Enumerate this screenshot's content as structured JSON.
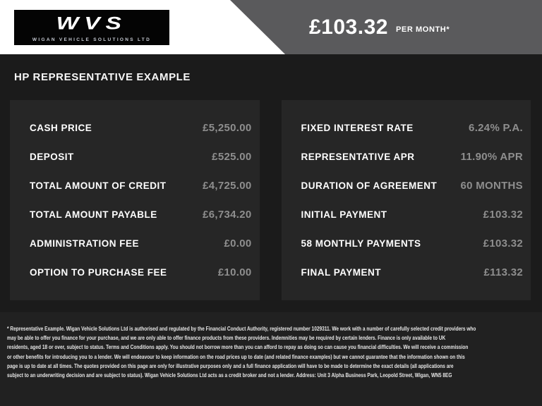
{
  "header": {
    "logo": {
      "acronym": "WVS",
      "subtitle": "WIGAN VEHICLE SOLUTIONS LTD"
    },
    "price_flag": {
      "amount": "£103.32",
      "per_label": "PER MONTH*"
    }
  },
  "section": {
    "title": "HP REPRESENTATIVE EXAMPLE"
  },
  "panels": {
    "left": {
      "rows": [
        {
          "label": "CASH PRICE",
          "value": "£5,250.00"
        },
        {
          "label": "DEPOSIT",
          "value": "£525.00"
        },
        {
          "label": "TOTAL AMOUNT OF CREDIT",
          "value": "£4,725.00"
        },
        {
          "label": "TOTAL AMOUNT PAYABLE",
          "value": "£6,734.20"
        },
        {
          "label": "ADMINISTRATION FEE",
          "value": "£0.00"
        },
        {
          "label": "OPTION TO PURCHASE FEE",
          "value": "£10.00"
        }
      ]
    },
    "right": {
      "rows": [
        {
          "label": "FIXED INTEREST RATE",
          "value": "6.24% P.A."
        },
        {
          "label": "REPRESENTATIVE APR",
          "value": "11.90% APR"
        },
        {
          "label": "DURATION OF AGREEMENT",
          "value": "60 MONTHS"
        },
        {
          "label": "INITIAL PAYMENT",
          "value": "£103.32"
        },
        {
          "label": "58 MONTHLY PAYMENTS",
          "value": "£103.32"
        },
        {
          "label": "FINAL PAYMENT",
          "value": "£113.32"
        }
      ]
    }
  },
  "footer": {
    "lines": [
      "* Representative Example. Wigan Vehicle Solutions Ltd is authorised and regulated by the Financial Conduct Authority, registered number 1029311. We work with a number of carefully selected credit providers who",
      "may be able to offer you finance for your purchase, and we are only able to offer finance products from these providers. Indemnities may be required by certain lenders. Finance is only available to UK",
      "residents, aged 18 or over, subject to status. Terms and Conditions apply. You should not borrow more than you can afford to repay as doing so can cause you financial difficulties. We will receive a commission",
      "or other benefits for introducing you to a lender. We will endeavour to keep information on the road prices up to date (and related finance examples) but we cannot guarantee that the information shown on this",
      "page is up to date at all times. The quotes provided on this page are only for illustrative purposes only and a full finance application will have to be made to determine the exact details (all applications are",
      "subject to an underwriting decision and are subject to status). Wigan Vehicle Solutions Ltd acts as a credit broker and not a lender. Address: Unit 3 Alpha Business Park, Leopold Street, Wigan, WN5 8EG"
    ]
  },
  "colors": {
    "page_bg": "#1b1b1b",
    "panel_bg": "#262626",
    "footer_bg": "#212121",
    "flag_gray": "#5a5a5c",
    "value_gray": "#8e8e8e",
    "header_bg": "#ffffff",
    "logo_bg": "#040404"
  }
}
